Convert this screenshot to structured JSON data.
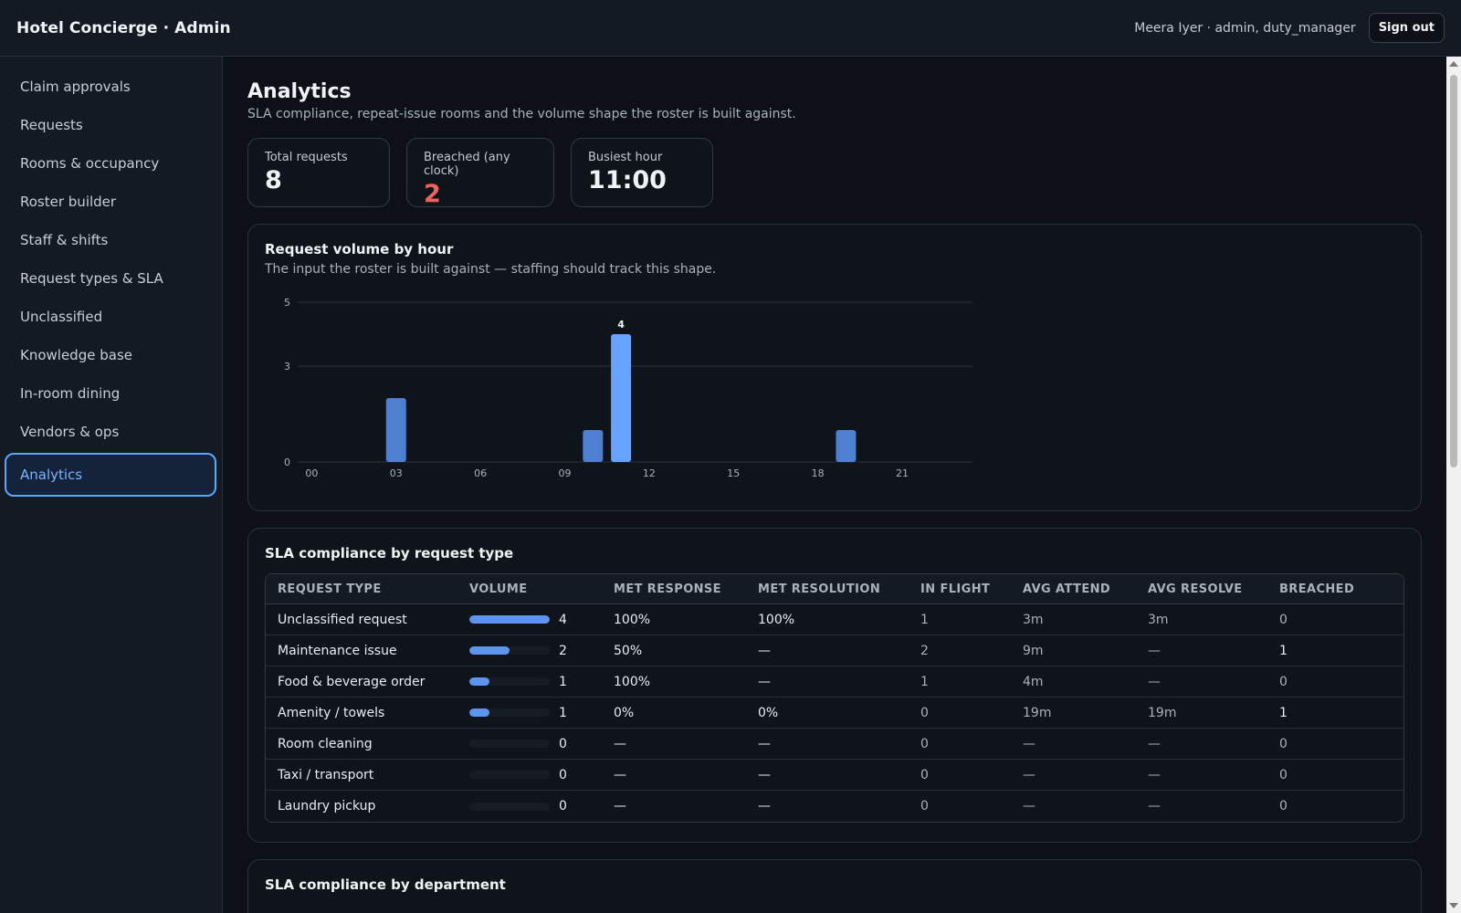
{
  "app": {
    "title": "Hotel Concierge · Admin"
  },
  "header": {
    "user": "Meera Iyer · admin, duty_manager",
    "signout_label": "Sign out"
  },
  "sidebar": {
    "items": [
      {
        "label": "Claim approvals"
      },
      {
        "label": "Requests"
      },
      {
        "label": "Rooms & occupancy"
      },
      {
        "label": "Roster builder"
      },
      {
        "label": "Staff & shifts"
      },
      {
        "label": "Request types & SLA"
      },
      {
        "label": "Unclassified"
      },
      {
        "label": "Knowledge base"
      },
      {
        "label": "In-room dining"
      },
      {
        "label": "Vendors & ops"
      },
      {
        "label": "Analytics",
        "active": true
      }
    ]
  },
  "page": {
    "title": "Analytics",
    "subtitle": "SLA compliance, repeat-issue rooms and the volume shape the roster is built against."
  },
  "kpis": [
    {
      "label": "Total requests",
      "value": "8"
    },
    {
      "label": "Breached (any clock)",
      "value": "2",
      "status": "bad"
    },
    {
      "label": "Busiest hour",
      "value": "11:00"
    }
  ],
  "volume_card": {
    "title": "Request volume by hour",
    "subtitle": "The input the roster is built against — staffing should track this shape."
  },
  "chart_data": {
    "type": "bar",
    "title": "Request volume by hour",
    "x": [
      0,
      1,
      2,
      3,
      4,
      5,
      6,
      7,
      8,
      9,
      10,
      11,
      12,
      13,
      14,
      15,
      16,
      17,
      18,
      19,
      20,
      21,
      22,
      23
    ],
    "values": [
      0,
      0,
      0,
      2,
      0,
      0,
      0,
      0,
      0,
      0,
      1,
      4,
      0,
      0,
      0,
      0,
      0,
      0,
      0,
      1,
      0,
      0,
      0,
      0
    ],
    "x_tick_labels": [
      "00",
      "03",
      "06",
      "09",
      "12",
      "15",
      "18",
      "21"
    ],
    "y_ticks": [
      0,
      3,
      5
    ],
    "ylim": [
      0,
      5
    ],
    "data_labels": [
      {
        "x": 11,
        "label": "4"
      }
    ],
    "highlight_x": 11,
    "colors": {
      "bar": "#4f7fd1",
      "highlight": "#66a3ff",
      "grid": "#2a323d"
    },
    "grid": true
  },
  "sla_type_card": {
    "title": "SLA compliance by request type",
    "columns": [
      "REQUEST TYPE",
      "VOLUME",
      "MET RESPONSE",
      "MET RESOLUTION",
      "IN FLIGHT",
      "AVG ATTEND",
      "AVG RESOLVE",
      "BREACHED"
    ],
    "rows": [
      {
        "type": "Unclassified request",
        "volume": 4,
        "volume_fraction": 1.0,
        "met_response": "100%",
        "met_resolution": "100%",
        "in_flight": "1",
        "avg_attend": "3m",
        "avg_resolve": "3m",
        "breached": "0"
      },
      {
        "type": "Maintenance issue",
        "volume": 2,
        "volume_fraction": 0.5,
        "met_response": "50%",
        "met_resolution": "—",
        "in_flight": "2",
        "avg_attend": "9m",
        "avg_resolve": "—",
        "breached": "1"
      },
      {
        "type": "Food & beverage order",
        "volume": 1,
        "volume_fraction": 0.25,
        "met_response": "100%",
        "met_resolution": "—",
        "in_flight": "1",
        "avg_attend": "4m",
        "avg_resolve": "—",
        "breached": "0"
      },
      {
        "type": "Amenity / towels",
        "volume": 1,
        "volume_fraction": 0.25,
        "met_response": "0%",
        "met_resolution": "0%",
        "in_flight": "0",
        "avg_attend": "19m",
        "avg_resolve": "19m",
        "breached": "1"
      },
      {
        "type": "Room cleaning",
        "volume": 0,
        "volume_fraction": 0,
        "met_response": "—",
        "met_resolution": "—",
        "in_flight": "0",
        "avg_attend": "—",
        "avg_resolve": "—",
        "breached": "0"
      },
      {
        "type": "Taxi / transport",
        "volume": 0,
        "volume_fraction": 0,
        "met_response": "—",
        "met_resolution": "—",
        "in_flight": "0",
        "avg_attend": "—",
        "avg_resolve": "—",
        "breached": "0"
      },
      {
        "type": "Laundry pickup",
        "volume": 0,
        "volume_fraction": 0,
        "met_response": "—",
        "met_resolution": "—",
        "in_flight": "0",
        "avg_attend": "—",
        "avg_resolve": "—",
        "breached": "0"
      }
    ]
  },
  "sla_dept_card": {
    "title": "SLA compliance by department"
  }
}
